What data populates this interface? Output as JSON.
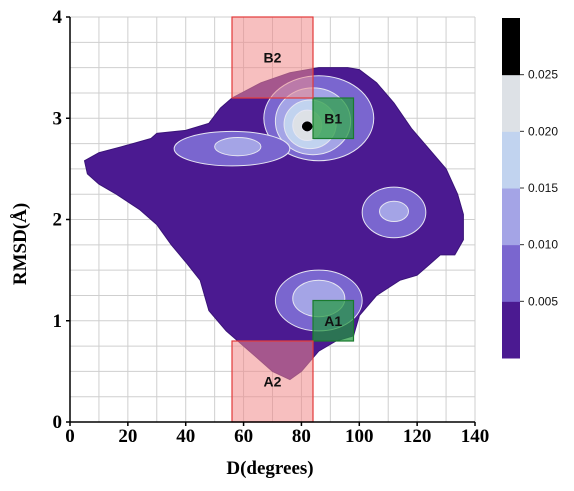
{
  "chart_data": {
    "type": "heatmap",
    "title": "",
    "xlabel": "D(degrees)",
    "ylabel": "RMSD(Å)",
    "xlim": [
      0,
      140
    ],
    "ylim": [
      0,
      4
    ],
    "xticks": [
      0,
      20,
      40,
      60,
      80,
      100,
      120,
      140
    ],
    "yticks": [
      0,
      1,
      2,
      3,
      4
    ],
    "grid": true,
    "colorbar": {
      "ticks": [
        "0.005",
        "0.010",
        "0.015",
        "0.020",
        "0.025"
      ],
      "levels": [
        0,
        0.005,
        0.01,
        0.015,
        0.02,
        0.025,
        0.03
      ],
      "colors": [
        "#4b1a91",
        "#7a66cf",
        "#a4a4e6",
        "#c1d3ef",
        "#dde1e6",
        "#000000"
      ],
      "placement": "right"
    },
    "populated_region_outline": [
      [
        6,
        2.45
      ],
      [
        5,
        2.58
      ],
      [
        10,
        2.66
      ],
      [
        18,
        2.72
      ],
      [
        28,
        2.8
      ],
      [
        30,
        2.85
      ],
      [
        40,
        2.88
      ],
      [
        48,
        2.95
      ],
      [
        52,
        3.1
      ],
      [
        56,
        3.2
      ],
      [
        66,
        3.35
      ],
      [
        76,
        3.45
      ],
      [
        86,
        3.5
      ],
      [
        96,
        3.5
      ],
      [
        100,
        3.48
      ],
      [
        106,
        3.35
      ],
      [
        112,
        3.15
      ],
      [
        118,
        2.9
      ],
      [
        124,
        2.7
      ],
      [
        130,
        2.5
      ],
      [
        134,
        2.25
      ],
      [
        136,
        2.05
      ],
      [
        136,
        1.8
      ],
      [
        133,
        1.65
      ],
      [
        128,
        1.65
      ],
      [
        124,
        1.55
      ],
      [
        120,
        1.45
      ],
      [
        114,
        1.4
      ],
      [
        106,
        1.25
      ],
      [
        100,
        1.05
      ],
      [
        98,
        0.85
      ],
      [
        92,
        0.8
      ],
      [
        86,
        0.7
      ],
      [
        80,
        0.5
      ],
      [
        76,
        0.42
      ],
      [
        70,
        0.5
      ],
      [
        62,
        0.7
      ],
      [
        58,
        0.8
      ],
      [
        54,
        0.9
      ],
      [
        48,
        1.1
      ],
      [
        45,
        1.4
      ],
      [
        40,
        1.58
      ],
      [
        35,
        1.75
      ],
      [
        30,
        1.95
      ],
      [
        24,
        2.1
      ],
      [
        16,
        2.25
      ],
      [
        10,
        2.35
      ]
    ],
    "minimum_point": {
      "x": 82,
      "y": 2.92
    },
    "contours": [
      {
        "level": 0.005,
        "center": [
          86,
          3.0
        ],
        "rx": 19,
        "ry": 0.42
      },
      {
        "level": 0.01,
        "center": [
          84,
          2.97
        ],
        "rx": 13,
        "ry": 0.33
      },
      {
        "level": 0.015,
        "center": [
          83,
          2.94
        ],
        "rx": 9,
        "ry": 0.24
      },
      {
        "level": 0.02,
        "center": [
          82,
          2.93
        ],
        "rx": 5,
        "ry": 0.15
      },
      {
        "level": 0.025,
        "center": [
          82,
          2.92
        ],
        "rx": 2,
        "ry": 0.05
      },
      {
        "level": 0.005,
        "center": [
          56,
          2.7
        ],
        "rx": 20,
        "ry": 0.17
      },
      {
        "level": 0.01,
        "center": [
          58,
          2.72
        ],
        "rx": 8,
        "ry": 0.09
      },
      {
        "level": 0.005,
        "center": [
          112,
          2.07
        ],
        "rx": 11,
        "ry": 0.25
      },
      {
        "level": 0.01,
        "center": [
          112,
          2.08
        ],
        "rx": 5,
        "ry": 0.1
      },
      {
        "level": 0.005,
        "center": [
          86,
          1.2
        ],
        "rx": 15,
        "ry": 0.3
      },
      {
        "level": 0.01,
        "center": [
          86,
          1.22
        ],
        "rx": 9,
        "ry": 0.18
      }
    ],
    "regions": [
      {
        "label": "A1",
        "x": [
          84,
          98
        ],
        "y": [
          0.8,
          1.2
        ],
        "color": "#1f9a3a"
      },
      {
        "label": "A2",
        "x": [
          56,
          84
        ],
        "y": [
          0,
          0.8
        ],
        "color": "#f08a8a"
      },
      {
        "label": "B1",
        "x": [
          84,
          98
        ],
        "y": [
          2.8,
          3.2
        ],
        "color": "#1f9a3a"
      },
      {
        "label": "B2",
        "x": [
          56,
          84
        ],
        "y": [
          3.2,
          4.0
        ],
        "color": "#f08a8a"
      }
    ]
  }
}
